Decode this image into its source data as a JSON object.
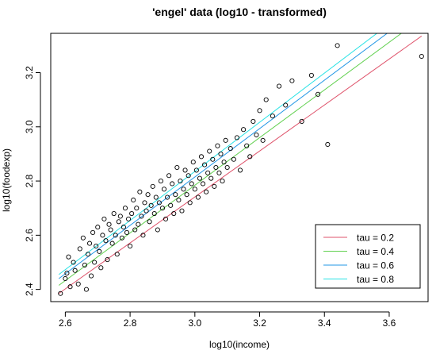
{
  "chart_data": {
    "type": "scatter",
    "title": "'engel' data  (log10 - transformed)",
    "xlabel": "log10(income)",
    "ylabel": "log10(foodexp)",
    "xlim": [
      2.555,
      3.72
    ],
    "ylim": [
      2.355,
      3.345
    ],
    "xticks": [
      2.6,
      2.8,
      3.0,
      3.2,
      3.4,
      3.6
    ],
    "xtick_labels": [
      "2.6",
      "2.8",
      "3.0",
      "3.2",
      "3.4",
      "3.6"
    ],
    "yticks": [
      2.4,
      2.6,
      2.8,
      3.0,
      3.2
    ],
    "ytick_labels": [
      "2.4",
      "2.6",
      "2.8",
      "3.0",
      "3.2"
    ],
    "grid": false,
    "legend_position": "bottom-right",
    "series": [
      {
        "name": "tau =  0.2",
        "kind": "line",
        "color": "#DF536B",
        "x": [
          2.58,
          3.7
        ],
        "y": [
          2.385,
          3.335
        ]
      },
      {
        "name": "tau =  0.4",
        "kind": "line",
        "color": "#61D04F",
        "x": [
          2.58,
          3.7
        ],
        "y": [
          2.415,
          3.4
        ]
      },
      {
        "name": "tau =  0.6",
        "kind": "line",
        "color": "#2297E6",
        "x": [
          2.58,
          3.7
        ],
        "y": [
          2.44,
          3.44
        ]
      },
      {
        "name": "tau =  0.8",
        "kind": "line",
        "color": "#28E2E5",
        "x": [
          2.58,
          3.7
        ],
        "y": [
          2.455,
          3.47
        ]
      },
      {
        "name": "",
        "kind": "points",
        "color": "#000000",
        "points": [
          [
            2.585,
            2.385
          ],
          [
            2.6,
            2.44
          ],
          [
            2.605,
            2.46
          ],
          [
            2.61,
            2.52
          ],
          [
            2.615,
            2.41
          ],
          [
            2.625,
            2.5
          ],
          [
            2.63,
            2.47
          ],
          [
            2.64,
            2.42
          ],
          [
            2.645,
            2.55
          ],
          [
            2.655,
            2.59
          ],
          [
            2.66,
            2.49
          ],
          [
            2.665,
            2.4
          ],
          [
            2.67,
            2.53
          ],
          [
            2.675,
            2.57
          ],
          [
            2.68,
            2.45
          ],
          [
            2.685,
            2.61
          ],
          [
            2.69,
            2.5
          ],
          [
            2.695,
            2.56
          ],
          [
            2.7,
            2.63
          ],
          [
            2.705,
            2.54
          ],
          [
            2.71,
            2.48
          ],
          [
            2.715,
            2.6
          ],
          [
            2.72,
            2.66
          ],
          [
            2.725,
            2.58
          ],
          [
            2.73,
            2.51
          ],
          [
            2.735,
            2.64
          ],
          [
            2.74,
            2.62
          ],
          [
            2.745,
            2.57
          ],
          [
            2.75,
            2.68
          ],
          [
            2.755,
            2.6
          ],
          [
            2.76,
            2.53
          ],
          [
            2.765,
            2.65
          ],
          [
            2.77,
            2.67
          ],
          [
            2.775,
            2.59
          ],
          [
            2.78,
            2.63
          ],
          [
            2.785,
            2.7
          ],
          [
            2.79,
            2.61
          ],
          [
            2.795,
            2.66
          ],
          [
            2.8,
            2.56
          ],
          [
            2.805,
            2.68
          ],
          [
            2.81,
            2.73
          ],
          [
            2.815,
            2.62
          ],
          [
            2.82,
            2.7
          ],
          [
            2.825,
            2.64
          ],
          [
            2.83,
            2.76
          ],
          [
            2.835,
            2.67
          ],
          [
            2.84,
            2.6
          ],
          [
            2.845,
            2.72
          ],
          [
            2.85,
            2.69
          ],
          [
            2.855,
            2.75
          ],
          [
            2.86,
            2.65
          ],
          [
            2.865,
            2.71
          ],
          [
            2.87,
            2.78
          ],
          [
            2.875,
            2.68
          ],
          [
            2.88,
            2.74
          ],
          [
            2.885,
            2.62
          ],
          [
            2.89,
            2.72
          ],
          [
            2.895,
            2.8
          ],
          [
            2.9,
            2.7
          ],
          [
            2.905,
            2.77
          ],
          [
            2.91,
            2.66
          ],
          [
            2.915,
            2.74
          ],
          [
            2.92,
            2.82
          ],
          [
            2.925,
            2.71
          ],
          [
            2.93,
            2.79
          ],
          [
            2.935,
            2.68
          ],
          [
            2.94,
            2.75
          ],
          [
            2.945,
            2.85
          ],
          [
            2.95,
            2.73
          ],
          [
            2.955,
            2.8
          ],
          [
            2.96,
            2.69
          ],
          [
            2.965,
            2.77
          ],
          [
            2.97,
            2.84
          ],
          [
            2.975,
            2.75
          ],
          [
            2.98,
            2.82
          ],
          [
            2.985,
            2.72
          ],
          [
            2.99,
            2.79
          ],
          [
            2.995,
            2.87
          ],
          [
            3.0,
            2.77
          ],
          [
            3.005,
            2.84
          ],
          [
            3.01,
            2.74
          ],
          [
            3.015,
            2.81
          ],
          [
            3.02,
            2.89
          ],
          [
            3.025,
            2.79
          ],
          [
            3.03,
            2.86
          ],
          [
            3.035,
            2.76
          ],
          [
            3.04,
            2.83
          ],
          [
            3.045,
            2.91
          ],
          [
            3.05,
            2.81
          ],
          [
            3.055,
            2.88
          ],
          [
            3.06,
            2.78
          ],
          [
            3.065,
            2.85
          ],
          [
            3.07,
            2.93
          ],
          [
            3.075,
            2.83
          ],
          [
            3.08,
            2.9
          ],
          [
            3.085,
            2.8
          ],
          [
            3.09,
            2.87
          ],
          [
            3.095,
            2.95
          ],
          [
            3.1,
            2.85
          ],
          [
            3.11,
            2.92
          ],
          [
            3.12,
            2.88
          ],
          [
            3.13,
            2.96
          ],
          [
            3.14,
            2.84
          ],
          [
            3.15,
            2.99
          ],
          [
            3.16,
            2.93
          ],
          [
            3.17,
            2.89
          ],
          [
            3.18,
            3.02
          ],
          [
            3.19,
            2.97
          ],
          [
            3.2,
            3.06
          ],
          [
            3.21,
            2.95
          ],
          [
            3.22,
            3.1
          ],
          [
            3.24,
            3.04
          ],
          [
            3.26,
            3.15
          ],
          [
            3.28,
            3.08
          ],
          [
            3.3,
            3.17
          ],
          [
            3.33,
            3.02
          ],
          [
            3.36,
            3.19
          ],
          [
            3.38,
            3.12
          ],
          [
            3.41,
            2.935
          ],
          [
            3.44,
            3.3
          ],
          [
            3.7,
            3.26
          ]
        ]
      }
    ]
  }
}
